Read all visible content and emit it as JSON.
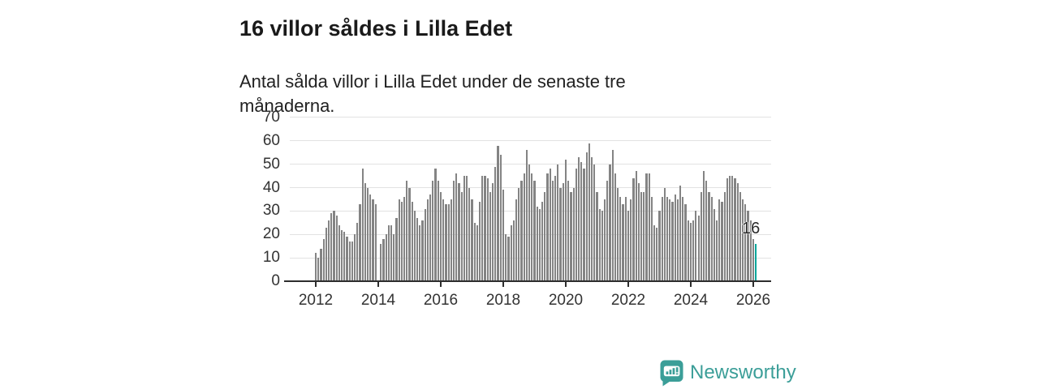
{
  "header": {
    "title": "16 villor såldes i Lilla Edet",
    "subtitle": "Antal sålda villor i Lilla Edet under de senaste tre månaderna."
  },
  "chart_data": {
    "type": "bar",
    "title": "16 villor såldes i Lilla Edet",
    "subtitle": "Antal sålda villor i Lilla Edet under de senaste tre månaderna.",
    "x_monthly": {
      "start": "2012-01",
      "end": "2026-02"
    },
    "x_tick_labels": [
      "2012",
      "2014",
      "2016",
      "2018",
      "2020",
      "2022",
      "2024",
      "2026"
    ],
    "y_ticks": [
      0,
      10,
      20,
      30,
      40,
      50,
      60,
      70
    ],
    "ylim": [
      0,
      70
    ],
    "grid": true,
    "bar_color": "#848484",
    "values": [
      12,
      10,
      14,
      18,
      23,
      26,
      29,
      30,
      28,
      24,
      22,
      21,
      19,
      17,
      17,
      20,
      25,
      33,
      48,
      42,
      40,
      37,
      35,
      33,
      0,
      16,
      18,
      20,
      24,
      24,
      20,
      27,
      35,
      34,
      36,
      43,
      40,
      34,
      30,
      27,
      24,
      26,
      31,
      35,
      37,
      43,
      48,
      43,
      38,
      35,
      33,
      33,
      35,
      43,
      46,
      42,
      38,
      45,
      45,
      40,
      35,
      25,
      24,
      34,
      45,
      45,
      44,
      38,
      42,
      49,
      58,
      54,
      39,
      20,
      19,
      24,
      26,
      35,
      40,
      43,
      46,
      56,
      50,
      46,
      43,
      32,
      31,
      34,
      38,
      46,
      48,
      43,
      45,
      50,
      40,
      42,
      52,
      43,
      38,
      40,
      48,
      53,
      51,
      48,
      55,
      59,
      53,
      50,
      38,
      31,
      30,
      35,
      43,
      50,
      56,
      46,
      40,
      36,
      33,
      36,
      30,
      35,
      44,
      47,
      42,
      38,
      38,
      46,
      46,
      36,
      24,
      23,
      30,
      36,
      40,
      36,
      35,
      34,
      37,
      35,
      41,
      36,
      33,
      26,
      25,
      26,
      30,
      28,
      38,
      47,
      43,
      38,
      36,
      31,
      26,
      35,
      34,
      38,
      44,
      45,
      45,
      44,
      42,
      38,
      35,
      33,
      30,
      26,
      18,
      16
    ],
    "highlight": {
      "index": 169,
      "value": 16,
      "label": "16",
      "color": "#00a69b"
    }
  },
  "footer": {
    "brand": "Newsworthy",
    "brand_color": "#3b9e98",
    "logo_icon": "newsworthy-chart-bubble-icon"
  }
}
